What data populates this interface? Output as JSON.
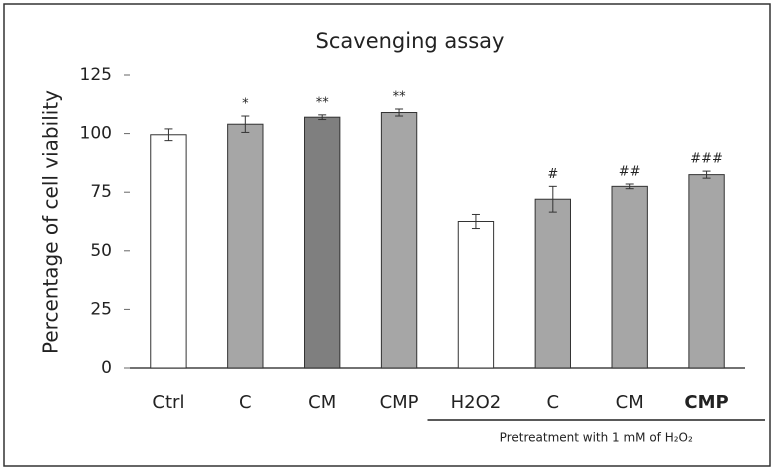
{
  "chart_data": {
    "type": "bar",
    "title": "Scavenging assay",
    "y_label": "Percentage of cell viability",
    "categories": [
      "Ctrl",
      "C",
      "CM",
      "CMP",
      "H2O2",
      "C",
      "CM",
      "CMP"
    ],
    "values": [
      99.5,
      104,
      107,
      109,
      62.5,
      72,
      77.5,
      82.5
    ],
    "errors": [
      2.5,
      3.5,
      1,
      1.5,
      3,
      5.5,
      1,
      1.5
    ],
    "annotations": [
      null,
      "*",
      "**",
      "**",
      null,
      "#",
      "##",
      "###"
    ],
    "colors": [
      "#ffffff",
      "#a6a6a6",
      "#7f7f7f",
      "#a6a6a6",
      "#ffffff",
      "#a6a6a6",
      "#a6a6a6",
      "#a6a6a6"
    ],
    "group_label": "Pretreatment with 1 mM of H₂O₂",
    "ylim": [
      0,
      125
    ],
    "yticks": [
      0,
      25,
      50,
      75,
      100,
      125
    ],
    "grid": false
  }
}
